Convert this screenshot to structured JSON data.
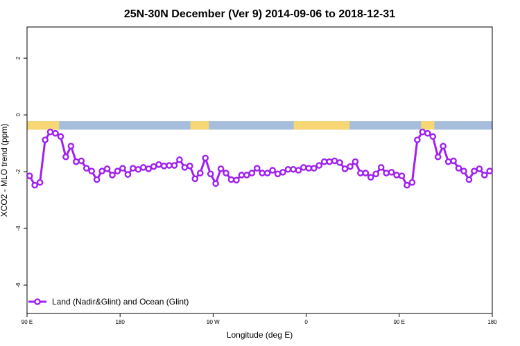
{
  "chart_data": {
    "type": "line",
    "title": "25N-30N December (Ver 9)   2014-09-06 to 2018-12-31",
    "xlabel": "Longitude (deg E)",
    "ylabel": "XCO2 - MLO trend (ppm)",
    "xlim": [
      0,
      450
    ],
    "ylim": [
      -7,
      3.1
    ],
    "x_ticks": [
      {
        "value": 0,
        "label": "90 E"
      },
      {
        "value": 90,
        "label": "180"
      },
      {
        "value": 180,
        "label": "90 W"
      },
      {
        "value": 270,
        "label": "0"
      },
      {
        "value": 360,
        "label": "90 E"
      },
      {
        "value": 450,
        "label": "180"
      }
    ],
    "y_ticks": [
      {
        "value": 2,
        "label": "2"
      },
      {
        "value": 0,
        "label": "0"
      },
      {
        "value": -2,
        "label": "-2"
      },
      {
        "value": -4,
        "label": "-4"
      },
      {
        "value": -6,
        "label": "-6"
      }
    ],
    "legend": {
      "position": "bottom-left",
      "label": "Land (Nadir&Glint) and Ocean (Glint)"
    },
    "land_mask": {
      "y_range": [
        -0.52,
        -0.22
      ],
      "ocean_color": "#a6bddb",
      "land_color": "#f7d774",
      "land_segments": [
        [
          0,
          31
        ],
        [
          158,
          176
        ],
        [
          258,
          312
        ],
        [
          381,
          394
        ]
      ]
    },
    "series": [
      {
        "name": "Land (Nadir&Glint) and Ocean (Glint)",
        "color": "#a020f0",
        "x": [
          2.5,
          7.5,
          12.5,
          17.5,
          22.5,
          27.5,
          32.5,
          37.5,
          42.5,
          47.5,
          52.5,
          57.5,
          62.5,
          67.5,
          72.5,
          77.5,
          82.5,
          87.5,
          92.5,
          97.5,
          102.5,
          107.5,
          112.5,
          117.5,
          122.5,
          127.5,
          132.5,
          137.5,
          142.5,
          147.5,
          152.5,
          157.5,
          162.5,
          167.5,
          172.5,
          177.5,
          182.5,
          187.5,
          192.5,
          197.5,
          202.5,
          207.5,
          212.5,
          217.5,
          222.5,
          227.5,
          232.5,
          237.5,
          242.5,
          247.5,
          252.5,
          257.5,
          262.5,
          267.5,
          272.5,
          277.5,
          282.5,
          287.5,
          292.5,
          297.5,
          302.5,
          307.5,
          312.5,
          317.5,
          322.5,
          327.5,
          332.5,
          337.5,
          342.5,
          347.5,
          352.5,
          357.5,
          362.5,
          367.5,
          372.5,
          377.5,
          382.5,
          387.5,
          392.5,
          397.5,
          402.5,
          407.5,
          412.5,
          417.5,
          422.5,
          427.5,
          432.5,
          437.5,
          442.5,
          447.5
        ],
        "values": [
          -2.15,
          -2.48,
          -2.38,
          -0.88,
          -0.6,
          -0.65,
          -0.76,
          -1.48,
          -1.1,
          -1.65,
          -1.62,
          -1.88,
          -1.98,
          -2.28,
          -1.98,
          -1.9,
          -2.12,
          -1.98,
          -1.88,
          -2.1,
          -1.88,
          -1.92,
          -1.85,
          -1.9,
          -1.82,
          -1.75,
          -1.8,
          -1.78,
          -1.78,
          -1.58,
          -1.85,
          -1.8,
          -2.25,
          -2.05,
          -1.52,
          -2.08,
          -2.42,
          -1.9,
          -2.05,
          -2.28,
          -2.3,
          -2.12,
          -2.12,
          -2.05,
          -1.88,
          -2.05,
          -2.05,
          -1.95,
          -2.08,
          -2.02,
          -1.92,
          -1.92,
          -1.95,
          -1.85,
          -1.88,
          -1.88,
          -1.78,
          -1.65,
          -1.65,
          -1.62,
          -1.68,
          -1.9,
          -1.82,
          -1.65,
          -2.05,
          -2.05,
          -2.2,
          -2.08,
          -1.85,
          -2.05,
          -2.02,
          -2.12,
          -2.15,
          -2.48,
          -2.38,
          -0.88,
          -0.6,
          -0.65,
          -0.76,
          -1.48,
          -1.1,
          -1.65,
          -1.62,
          -1.88,
          -1.98,
          -2.28,
          -1.98,
          -1.9,
          -2.12,
          -1.98
        ]
      }
    ]
  }
}
